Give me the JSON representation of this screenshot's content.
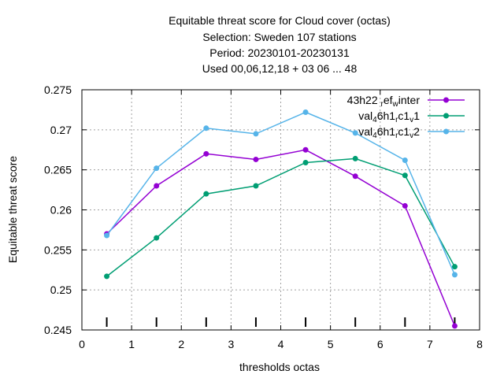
{
  "chart_data": {
    "type": "line",
    "title_lines": [
      "Equitable threat score  for Cloud cover (octas)",
      "Selection: Sweden    107 stations",
      "Period: 20230101-20230131",
      "Used  00,06,12,18  + 03 06 ... 48"
    ],
    "xlabel": "thresholds octas",
    "ylabel": "Equitable threat score",
    "xlim": [
      0,
      8
    ],
    "ylim": [
      0.245,
      0.275
    ],
    "xticks": [
      0,
      1,
      2,
      3,
      4,
      5,
      6,
      7,
      8
    ],
    "yticks": [
      "0.245",
      "0.25",
      "0.255",
      "0.26",
      "0.265",
      "0.27",
      "0.275"
    ],
    "grid": true,
    "legend_position": "top-right",
    "x": [
      0.5,
      1.5,
      2.5,
      3.5,
      4.5,
      5.5,
      6.5,
      7.5
    ],
    "series": [
      {
        "name": "43h22_ref_winter",
        "legend_parts": [
          [
            "43h22 ",
            ""
          ],
          [
            "r",
            "sub"
          ],
          [
            "ef",
            ""
          ],
          [
            "w",
            "sub"
          ],
          [
            "inter",
            ""
          ]
        ],
        "color": "#9400d3",
        "values": [
          0.257,
          0.263,
          0.267,
          0.2663,
          0.2675,
          0.2642,
          0.2605,
          0.2455
        ]
      },
      {
        "name": "val_46h1_rc1_v1",
        "legend_parts": [
          [
            "val",
            ""
          ],
          [
            "4",
            "sub"
          ],
          [
            "6h1",
            ""
          ],
          [
            "r",
            "sub"
          ],
          [
            "c1",
            ""
          ],
          [
            "v",
            "sub"
          ],
          [
            "1",
            ""
          ]
        ],
        "color": "#009e73",
        "values": [
          0.2517,
          0.2565,
          0.262,
          0.263,
          0.2659,
          0.2664,
          0.2643,
          0.2529
        ]
      },
      {
        "name": "val_46h1_rc1_v2",
        "legend_parts": [
          [
            "val",
            ""
          ],
          [
            "4",
            "sub"
          ],
          [
            "6h1",
            ""
          ],
          [
            "r",
            "sub"
          ],
          [
            "c1",
            ""
          ],
          [
            "v",
            "sub"
          ],
          [
            "2",
            ""
          ]
        ],
        "color": "#56b4e9",
        "values": [
          0.2568,
          0.2652,
          0.2702,
          0.2695,
          0.2722,
          0.2696,
          0.2662,
          0.2519
        ]
      }
    ]
  }
}
